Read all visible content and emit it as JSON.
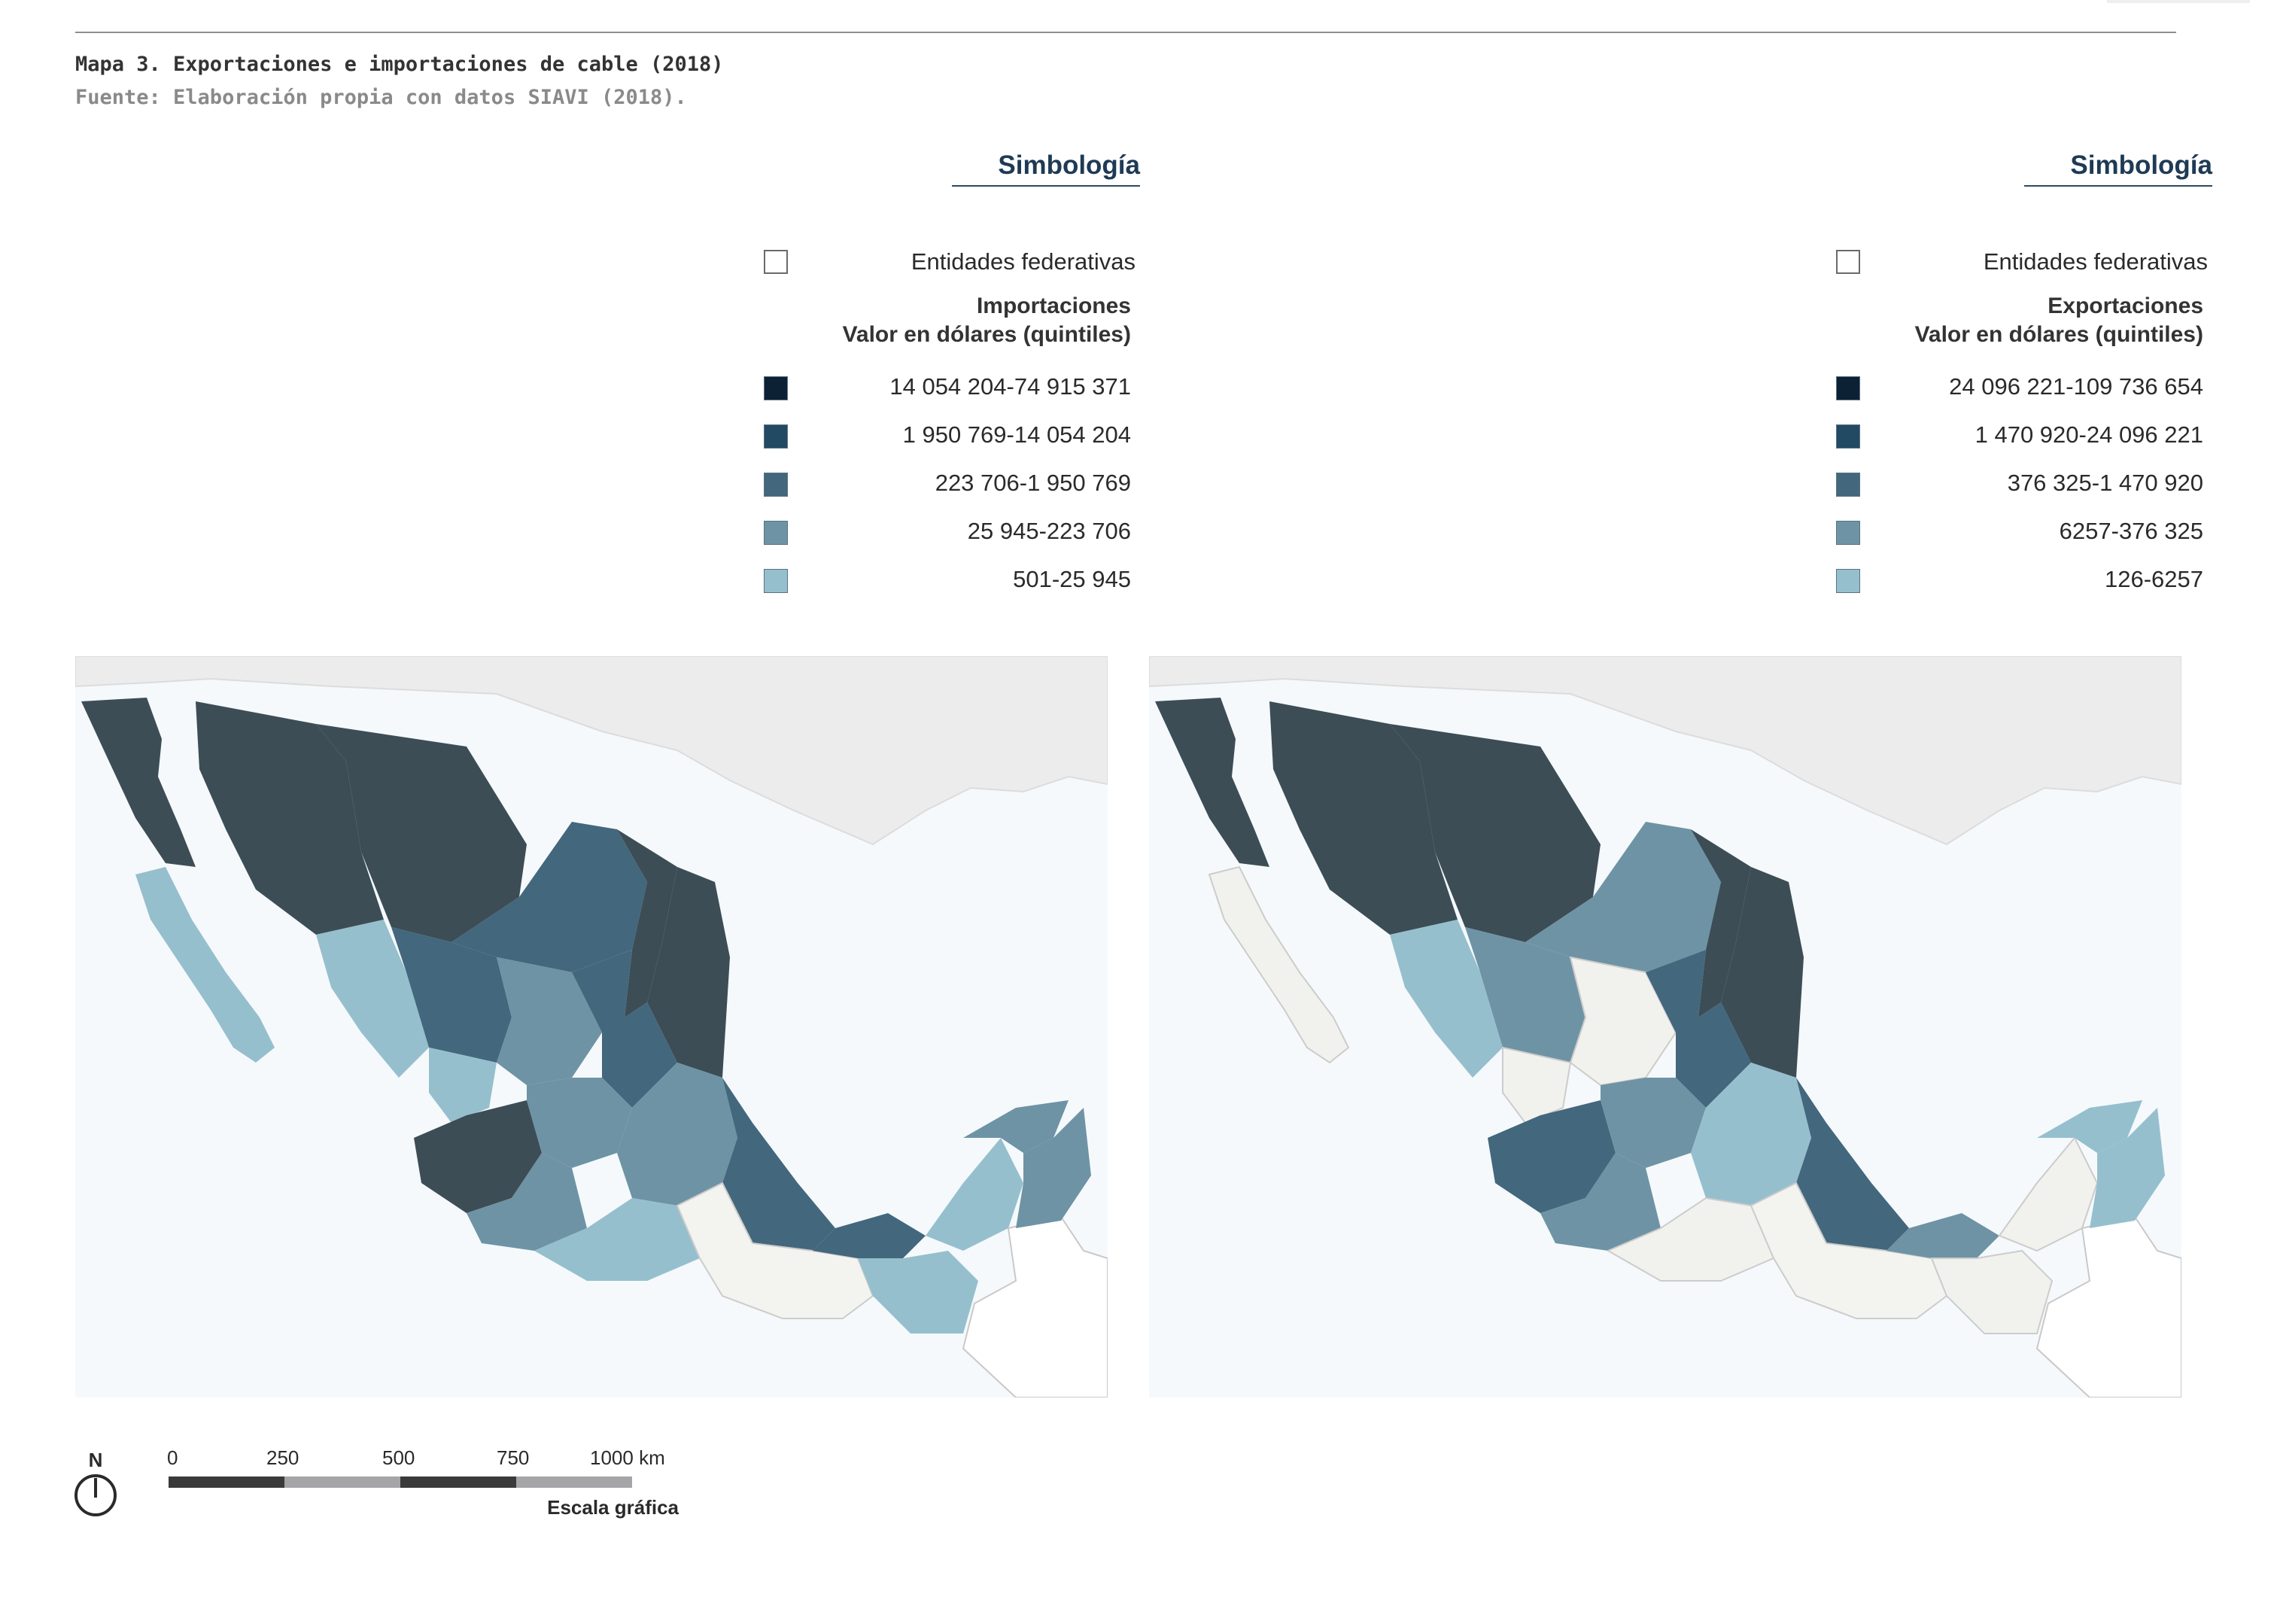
{
  "caption": "Mapa 3. Exportaciones e importaciones de cable (2018)",
  "source": "Fuente: Elaboración propia con datos SIAVI (2018).",
  "colors": {
    "q1": "#0c2234",
    "q2": "#234a63",
    "q3": "#43677d",
    "q4": "#6e93a5",
    "q5": "#96bfce",
    "entity": "#ffffff",
    "water": "#f5f9fb",
    "foreign_land": "#ececec",
    "state_dark": "#3c4d56"
  },
  "legend_left": {
    "title": "Simbología",
    "entity_label": "Entidades federativas",
    "header_line1": "Importaciones",
    "header_line2": "Valor en dólares (quintiles)",
    "classes": [
      {
        "label": "14 054 204-74 915 371",
        "color": "#0c2234"
      },
      {
        "label": "1 950 769-14 054 204",
        "color": "#234a63"
      },
      {
        "label": "223 706-1 950 769",
        "color": "#43677d"
      },
      {
        "label": "25 945-223 706",
        "color": "#6e93a5"
      },
      {
        "label": "501-25 945",
        "color": "#96bfce"
      }
    ]
  },
  "legend_right": {
    "title": "Simbología",
    "entity_label": "Entidades federativas",
    "header_line1": "Exportaciones",
    "header_line2": "Valor en dólares (quintiles)",
    "classes": [
      {
        "label": "24 096 221-109 736 654",
        "color": "#0c2234"
      },
      {
        "label": "1 470 920-24 096 221",
        "color": "#234a63"
      },
      {
        "label": "376 325-1 470 920",
        "color": "#43677d"
      },
      {
        "label": "6257-376 325",
        "color": "#6e93a5"
      },
      {
        "label": "126-6257",
        "color": "#96bfce"
      }
    ]
  },
  "north_label": "N",
  "scale": {
    "ticks": [
      "0",
      "250",
      "500",
      "750",
      "1000 km"
    ],
    "title": "Escala gráfica"
  }
}
